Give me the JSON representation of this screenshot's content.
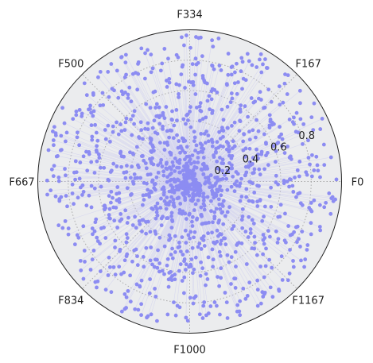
{
  "chart_data": {
    "type": "scatter",
    "projection": "polar",
    "title": "",
    "angular_tick_labels": [
      "F0",
      "F167",
      "F334",
      "F500",
      "F667",
      "F834",
      "F1000",
      "F1167"
    ],
    "radial_tick_labels": [
      "0.2",
      "0.4",
      "0.6",
      "0.8"
    ],
    "radial_ticks": [
      0.2,
      0.4,
      0.6,
      0.8
    ],
    "rlim": [
      0,
      1.0
    ],
    "grid": true,
    "background_color": "#ebecee",
    "marker_color": "#8c8cf2",
    "line_color": "#c8c8f0",
    "grid_color": "#aaaaaa",
    "series": [
      {
        "n_points": 1333,
        "description_note": "",
        "points": []
      }
    ]
  }
}
